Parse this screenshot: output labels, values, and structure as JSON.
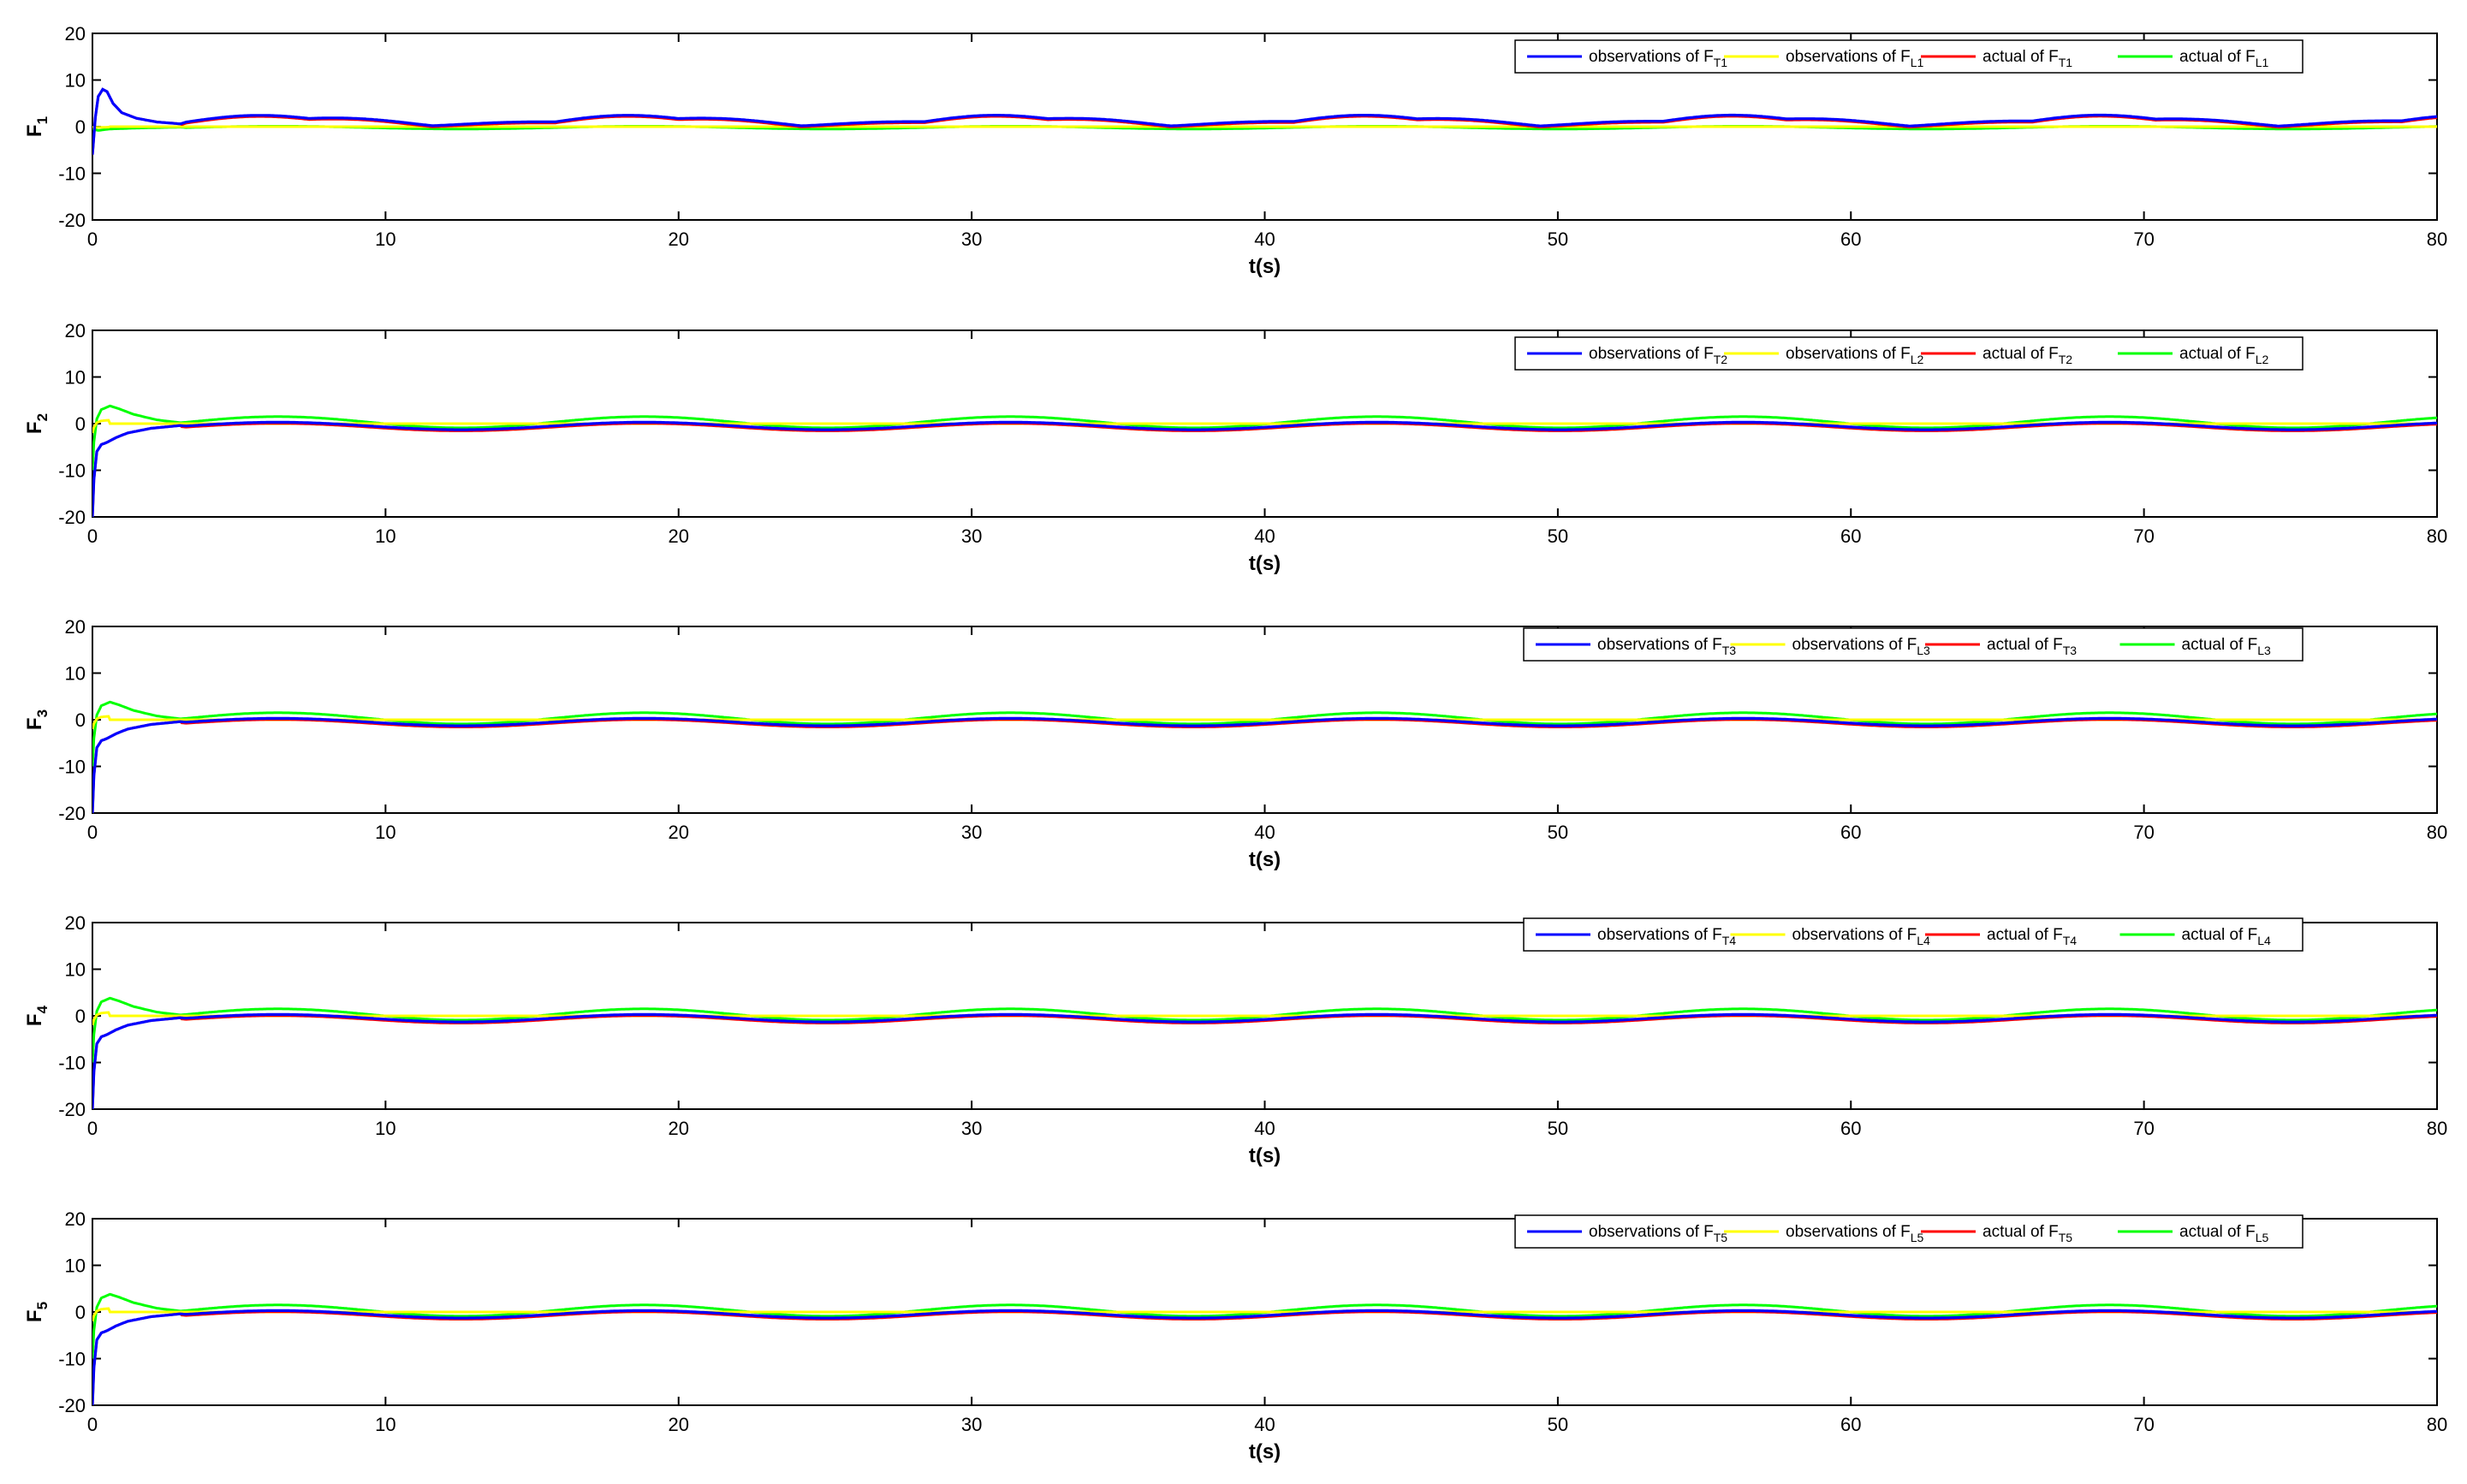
{
  "chart_data": [
    {
      "type": "line",
      "ylabel": "F",
      "ylabel_sub": "1",
      "xlabel": "t(s)",
      "xlim": [
        0,
        80
      ],
      "ylim": [
        -20,
        20
      ],
      "xticks": [
        "0",
        "10",
        "20",
        "30",
        "40",
        "50",
        "60",
        "70",
        "80"
      ],
      "yticks": [
        "20",
        "10",
        "0",
        "-10",
        "-20"
      ],
      "grid": false,
      "legend_position": "top-right",
      "series": [
        {
          "name_main": "observations of F",
          "name_sub": "T1",
          "color": "#0000ff",
          "kind": "obs_T",
          "shape": "panel1_T"
        },
        {
          "name_main": "observations of F",
          "name_sub": "L1",
          "color": "#ffff00",
          "kind": "obs_L",
          "shape": "panel1_L"
        },
        {
          "name_main": "actual of F",
          "name_sub": "T1",
          "color": "#ff0000",
          "kind": "act_T",
          "shape": "panel1_T"
        },
        {
          "name_main": "actual of F",
          "name_sub": "L1",
          "color": "#00ff00",
          "kind": "act_L",
          "shape": "panel1_L"
        }
      ]
    },
    {
      "type": "line",
      "ylabel": "F",
      "ylabel_sub": "2",
      "xlabel": "t(s)",
      "xlim": [
        0,
        80
      ],
      "ylim": [
        -20,
        20
      ],
      "xticks": [
        "0",
        "10",
        "20",
        "30",
        "40",
        "50",
        "60",
        "70",
        "80"
      ],
      "yticks": [
        "20",
        "10",
        "0",
        "-10",
        "-20"
      ],
      "grid": false,
      "legend_position": "top-right",
      "series": [
        {
          "name_main": "observations of F",
          "name_sub": "T2",
          "color": "#0000ff",
          "kind": "obs_T",
          "shape": "panelN_T"
        },
        {
          "name_main": "observations of F",
          "name_sub": "L2",
          "color": "#ffff00",
          "kind": "obs_L",
          "shape": "panelN_L"
        },
        {
          "name_main": "actual of F",
          "name_sub": "T2",
          "color": "#ff0000",
          "kind": "act_T",
          "shape": "panelN_T"
        },
        {
          "name_main": "actual of F",
          "name_sub": "L2",
          "color": "#00ff00",
          "kind": "act_L",
          "shape": "panelN_L"
        }
      ]
    },
    {
      "type": "line",
      "ylabel": "F",
      "ylabel_sub": "3",
      "xlabel": "t(s)",
      "xlim": [
        0,
        80
      ],
      "ylim": [
        -20,
        20
      ],
      "xticks": [
        "0",
        "10",
        "20",
        "30",
        "40",
        "50",
        "60",
        "70",
        "80"
      ],
      "yticks": [
        "20",
        "10",
        "0",
        "-10",
        "-20"
      ],
      "grid": false,
      "legend_position": "top-right",
      "series": [
        {
          "name_main": "observations of F",
          "name_sub": "T3",
          "color": "#0000ff",
          "kind": "obs_T",
          "shape": "panelN_T"
        },
        {
          "name_main": "observations of F",
          "name_sub": "L3",
          "color": "#ffff00",
          "kind": "obs_L",
          "shape": "panelN_L"
        },
        {
          "name_main": "actual of F",
          "name_sub": "T3",
          "color": "#ff0000",
          "kind": "act_T",
          "shape": "panelN_T"
        },
        {
          "name_main": "actual of F",
          "name_sub": "L3",
          "color": "#00ff00",
          "kind": "act_L",
          "shape": "panelN_L"
        }
      ]
    },
    {
      "type": "line",
      "ylabel": "F",
      "ylabel_sub": "4",
      "xlabel": "t(s)",
      "xlim": [
        0,
        80
      ],
      "ylim": [
        -20,
        20
      ],
      "xticks": [
        "0",
        "10",
        "20",
        "30",
        "40",
        "50",
        "60",
        "70",
        "80"
      ],
      "yticks": [
        "20",
        "10",
        "0",
        "-10",
        "-20"
      ],
      "grid": false,
      "legend_position": "top-right",
      "series": [
        {
          "name_main": "observations of F",
          "name_sub": "T4",
          "color": "#0000ff",
          "kind": "obs_T",
          "shape": "panelN_T"
        },
        {
          "name_main": "observations of F",
          "name_sub": "L4",
          "color": "#ffff00",
          "kind": "obs_L",
          "shape": "panelN_L"
        },
        {
          "name_main": "actual of F",
          "name_sub": "T4",
          "color": "#ff0000",
          "kind": "act_T",
          "shape": "panelN_T"
        },
        {
          "name_main": "actual of F",
          "name_sub": "L4",
          "color": "#00ff00",
          "kind": "act_L",
          "shape": "panelN_L"
        }
      ]
    },
    {
      "type": "line",
      "ylabel": "F",
      "ylabel_sub": "5",
      "xlabel": "t(s)",
      "xlim": [
        0,
        80
      ],
      "ylim": [
        -20,
        20
      ],
      "xticks": [
        "0",
        "10",
        "20",
        "30",
        "40",
        "50",
        "60",
        "70",
        "80"
      ],
      "yticks": [
        "20",
        "10",
        "0",
        "-10",
        "-20"
      ],
      "grid": false,
      "legend_position": "top-right",
      "series": [
        {
          "name_main": "observations of F",
          "name_sub": "T5",
          "color": "#0000ff",
          "kind": "obs_T",
          "shape": "panelN_T"
        },
        {
          "name_main": "observations of F",
          "name_sub": "L5",
          "color": "#ffff00",
          "kind": "obs_L",
          "shape": "panelN_L"
        },
        {
          "name_main": "actual of F",
          "name_sub": "T5",
          "color": "#ff0000",
          "kind": "act_T",
          "shape": "panelN_T"
        },
        {
          "name_main": "actual of F",
          "name_sub": "L5",
          "color": "#00ff00",
          "kind": "act_L",
          "shape": "panelN_L"
        }
      ]
    }
  ],
  "curve_shapes": {
    "panel1_T": {
      "transient": [
        [
          0,
          -6
        ],
        [
          0.1,
          2
        ],
        [
          0.2,
          6.5
        ],
        [
          0.35,
          8
        ],
        [
          0.5,
          7.5
        ],
        [
          0.7,
          5
        ],
        [
          1.0,
          3
        ],
        [
          1.5,
          1.8
        ],
        [
          2.2,
          1.0
        ],
        [
          3.0,
          0.6
        ]
      ],
      "periodic": {
        "t0": 3.2,
        "offset": 1.0,
        "amp1": 0.9,
        "per1": 12.5,
        "amp2": 0.6,
        "per2": 4.2
      }
    },
    "panel1_L": {
      "transient": [
        [
          0,
          -0.5
        ],
        [
          0.2,
          -0.8
        ],
        [
          0.6,
          -0.5
        ],
        [
          1.5,
          -0.3
        ],
        [
          3.0,
          -0.1
        ]
      ],
      "periodic": {
        "t0": 3.2,
        "offset": -0.2,
        "amp1": 0.3,
        "per1": 12.5,
        "amp2": 0.0,
        "per2": 4.2
      }
    },
    "panelN_T": {
      "transient": [
        [
          0,
          -20
        ],
        [
          0.05,
          -12
        ],
        [
          0.15,
          -6
        ],
        [
          0.3,
          -4.5
        ],
        [
          0.5,
          -4
        ],
        [
          0.8,
          -3
        ],
        [
          1.2,
          -2
        ],
        [
          2.0,
          -1
        ],
        [
          3.0,
          -0.4
        ]
      ],
      "periodic": {
        "t0": 3.2,
        "offset": -0.5,
        "amp1": 0.8,
        "per1": 12.5,
        "amp2": 0.0,
        "per2": 4.2
      }
    },
    "panelN_L": {
      "transient": [
        [
          0,
          -10
        ],
        [
          0.05,
          -4
        ],
        [
          0.15,
          1
        ],
        [
          0.3,
          3
        ],
        [
          0.6,
          3.8
        ],
        [
          0.9,
          3.2
        ],
        [
          1.4,
          2.0
        ],
        [
          2.2,
          0.8
        ],
        [
          3.0,
          0.2
        ]
      ],
      "periodic": {
        "t0": 3.2,
        "offset": 0.3,
        "amp1": 1.2,
        "per1": 12.5,
        "amp2": 0.0,
        "per2": 4.2
      }
    }
  }
}
